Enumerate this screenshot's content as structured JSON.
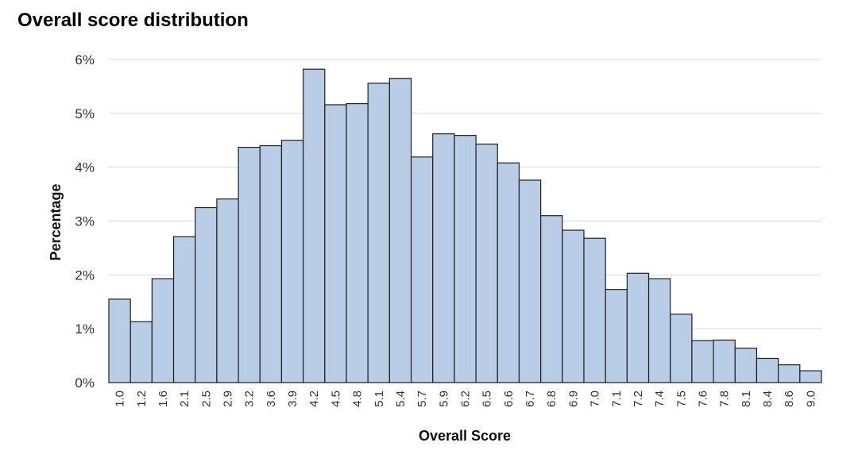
{
  "chart_data": {
    "type": "bar",
    "title": "Overall score distribution",
    "xlabel": "Overall Score",
    "ylabel": "Percentage",
    "y_tick_labels": [
      "0%",
      "1%",
      "2%",
      "3%",
      "4%",
      "5%",
      "6%"
    ],
    "ylim": [
      0,
      6
    ],
    "y_unit": "%",
    "grid": "horizontal",
    "legend": "none",
    "bar_color": "#b9cde6",
    "bar_edge_color": "#1f1f1f",
    "categories": [
      "1.0",
      "1.2",
      "1.6",
      "2.1",
      "2.5",
      "2.9",
      "3.2",
      "3.6",
      "3.9",
      "4.2",
      "4.5",
      "4.8",
      "5.1",
      "5.4",
      "5.7",
      "5.9",
      "6.2",
      "6.5",
      "6.6",
      "6.7",
      "6.8",
      "6.9",
      "7.0",
      "7.1",
      "7.2",
      "7.4",
      "7.5",
      "7.6",
      "7.8",
      "8.1",
      "8.4",
      "8.6",
      "9.0"
    ],
    "values": [
      1.55,
      1.13,
      1.93,
      2.71,
      3.25,
      3.41,
      4.37,
      4.4,
      4.5,
      5.82,
      5.16,
      5.18,
      5.56,
      5.65,
      4.19,
      4.62,
      4.59,
      4.43,
      4.08,
      3.76,
      3.1,
      2.83,
      2.68,
      1.73,
      2.03,
      1.93,
      1.27,
      0.78,
      0.79,
      0.64,
      0.45,
      0.33,
      0.22
    ]
  }
}
